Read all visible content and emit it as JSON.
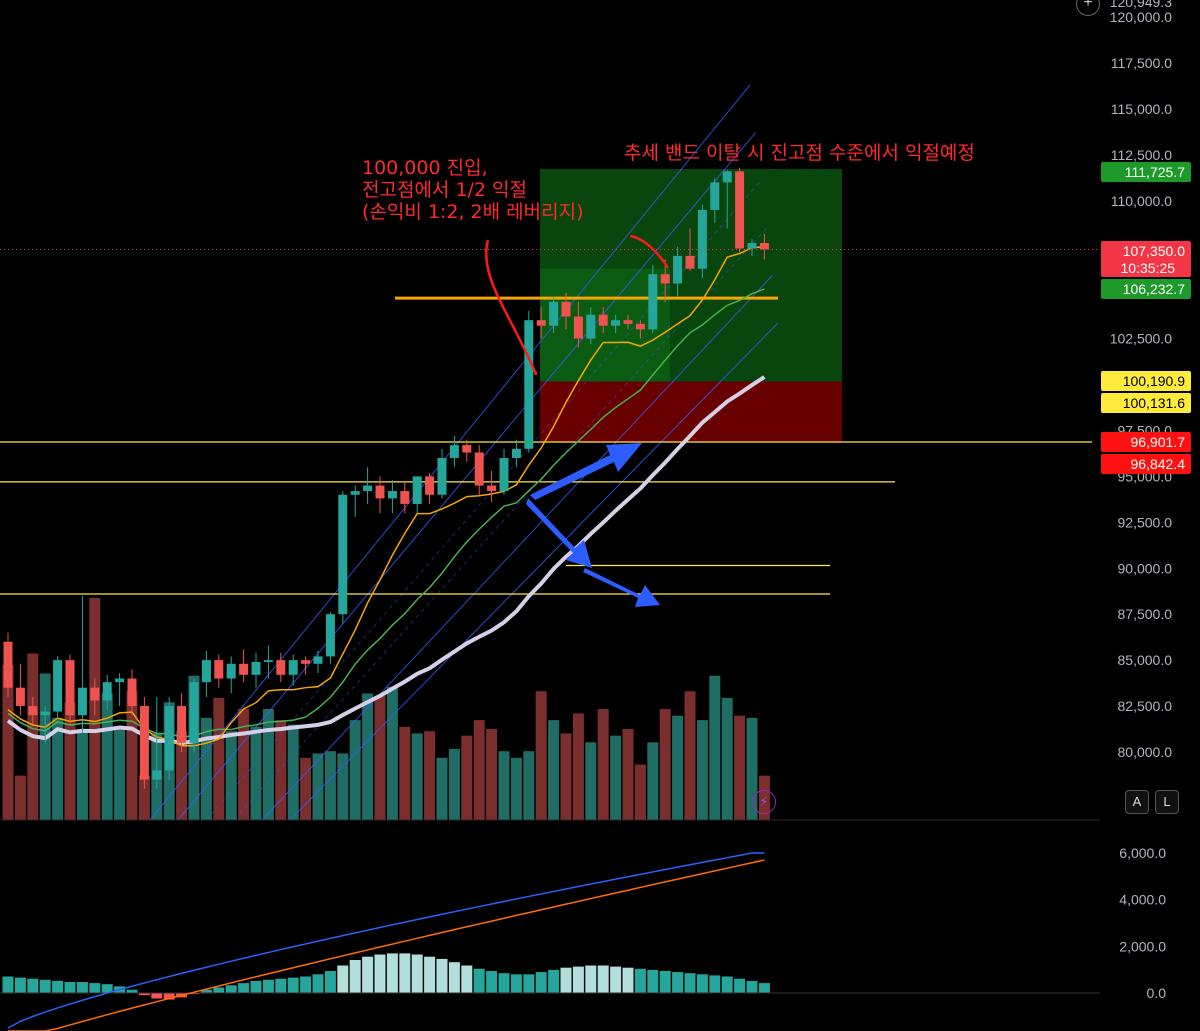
{
  "chart_data": [
    {
      "type": "candlestick",
      "symbol_note": "BTC price chart with volume",
      "y_axis": {
        "labels": [
          "120,000.0",
          "117,500.0",
          "115,000.0",
          "112,500.0",
          "110,000.0",
          "102,500.0",
          "97,500.0",
          "95,000.0",
          "92,500.0",
          "90,000.0",
          "87,500.0",
          "85,000.0",
          "82,500.0",
          "80,000.0"
        ],
        "values": [
          120000,
          117500,
          115000,
          112500,
          110000,
          102500,
          97500,
          95000,
          92500,
          90000,
          87500,
          85000,
          82500,
          80000
        ],
        "top_partial_label": "120,949.3"
      },
      "price_tags": [
        {
          "text": "111,725.7",
          "value": 111725.7,
          "bg": "#1e9a2a",
          "fg": "#ffffff"
        },
        {
          "text": "107,350.0",
          "value": 107350.0,
          "bg": "#f23645",
          "fg": "#ffffff",
          "sub": "10:35:25"
        },
        {
          "text": "106,232.7",
          "value": 106232.7,
          "bg": "#1e9a2a",
          "fg": "#ffffff"
        },
        {
          "text": "100,190.9",
          "value": 100190.9,
          "bg": "#ffeb3b",
          "fg": "#000000"
        },
        {
          "text": "100,131.6",
          "value": 100131.6,
          "bg": "#ffeb3b",
          "fg": "#000000"
        },
        {
          "text": "96,901.7",
          "value": 96901.7,
          "bg": "#ff1111",
          "fg": "#ffffff"
        },
        {
          "text": "96,842.4",
          "value": 96842.4,
          "bg": "#ff1111",
          "fg": "#ffffff"
        }
      ],
      "candles": [
        [
          86000,
          86500,
          83000,
          83500
        ],
        [
          83500,
          84800,
          82000,
          82500
        ],
        [
          82500,
          83000,
          81500,
          82000
        ],
        [
          82000,
          82500,
          80500,
          82200
        ],
        [
          82200,
          85200,
          81800,
          85000
        ],
        [
          85000,
          85300,
          81500,
          82000
        ],
        [
          82000,
          88500,
          81000,
          83500
        ],
        [
          83500,
          84000,
          82000,
          82800
        ],
        [
          82800,
          84200,
          82300,
          83800
        ],
        [
          83800,
          84300,
          82500,
          84000
        ],
        [
          84000,
          84500,
          82000,
          82500
        ],
        [
          82500,
          83000,
          78000,
          78500
        ],
        [
          78500,
          83000,
          78000,
          79000
        ],
        [
          79000,
          83000,
          78500,
          82500
        ],
        [
          82500,
          83200,
          80000,
          80500
        ],
        [
          80500,
          84000,
          80000,
          83800
        ],
        [
          83800,
          85500,
          83000,
          85000
        ],
        [
          85000,
          85300,
          83500,
          84000
        ],
        [
          84000,
          85200,
          83200,
          84800
        ],
        [
          84800,
          85600,
          83800,
          84200
        ],
        [
          84200,
          85400,
          83500,
          84900
        ],
        [
          84900,
          85800,
          84000,
          85000
        ],
        [
          85000,
          85400,
          83800,
          84200
        ],
        [
          84200,
          85300,
          83600,
          85000
        ],
        [
          85000,
          85200,
          84200,
          84800
        ],
        [
          84800,
          85500,
          84300,
          85200
        ],
        [
          85200,
          87600,
          84800,
          87500
        ],
        [
          87500,
          94200,
          87000,
          94000
        ],
        [
          94000,
          94500,
          92800,
          94200
        ],
        [
          94200,
          95500,
          93500,
          94500
        ],
        [
          94500,
          95000,
          93000,
          93800
        ],
        [
          93800,
          94800,
          93000,
          94200
        ],
        [
          94200,
          94700,
          93000,
          93500
        ],
        [
          93500,
          95000,
          93000,
          95000
        ],
        [
          95000,
          95200,
          93500,
          94000
        ],
        [
          94000,
          96500,
          93800,
          96000
        ],
        [
          96000,
          97200,
          95500,
          96700
        ],
        [
          96700,
          97000,
          95800,
          96300
        ],
        [
          96300,
          96700,
          94000,
          94500
        ],
        [
          94500,
          95300,
          93600,
          94200
        ],
        [
          94200,
          96500,
          94000,
          96000
        ],
        [
          96000,
          97000,
          95500,
          96500
        ],
        [
          96500,
          104000,
          96300,
          103500
        ],
        [
          103500,
          104200,
          102500,
          103200
        ],
        [
          103200,
          104800,
          102800,
          104500
        ],
        [
          104500,
          105000,
          103000,
          103700
        ],
        [
          103700,
          104500,
          102000,
          102500
        ],
        [
          102500,
          104200,
          102200,
          103800
        ],
        [
          103800,
          104200,
          102800,
          103200
        ],
        [
          103200,
          103800,
          102800,
          103500
        ],
        [
          103500,
          103800,
          103000,
          103300
        ],
        [
          103300,
          103500,
          102500,
          103000
        ],
        [
          103000,
          106500,
          102800,
          106000
        ],
        [
          106000,
          106800,
          104500,
          105500
        ],
        [
          105500,
          107500,
          104800,
          107000
        ],
        [
          107000,
          108500,
          106200,
          106300
        ],
        [
          106300,
          109800,
          105800,
          109500
        ],
        [
          109500,
          111200,
          108800,
          111000
        ],
        [
          111000,
          111700,
          108500,
          111600
        ],
        [
          111600,
          111800,
          107200,
          107400
        ],
        [
          107400,
          107900,
          107000,
          107700
        ],
        [
          107700,
          108200,
          106800,
          107350
        ]
      ],
      "volume": [
        70,
        20,
        75,
        66,
        46,
        53,
        40,
        100,
        57,
        42,
        58,
        20,
        39,
        53,
        40,
        65,
        46,
        55,
        40,
        50,
        42,
        50,
        45,
        43,
        28,
        30,
        31,
        30,
        45,
        57,
        56,
        60,
        42,
        39,
        40,
        28,
        32,
        38,
        45,
        41,
        31,
        28,
        31,
        58,
        45,
        39,
        48,
        35,
        50,
        38,
        41,
        25,
        35,
        50,
        47,
        58,
        45,
        65,
        55,
        47,
        46,
        20
      ],
      "volume_up_color": "#26a69a",
      "volume_down_color": "#ef5350",
      "lower_indicator": {
        "type": "macd",
        "y_labels": [
          "6,000.0",
          "4,000.0",
          "2,000.0",
          "0.0"
        ],
        "y_values": [
          6000,
          4000,
          2000,
          0
        ]
      },
      "horizontal_levels": [
        {
          "value": 104700,
          "color": "#f7a600",
          "label": ""
        },
        {
          "value": 96870,
          "color": "#ffeb3b"
        },
        {
          "value": 94700,
          "color": "#ffeb3b"
        },
        {
          "value": 90150,
          "color": "#ffeb3b"
        },
        {
          "value": 88600,
          "color": "#ffeb3b"
        }
      ],
      "position": {
        "entry": 100160,
        "take_profit_1": 104700,
        "take_profit_zone_top": 111725.7,
        "stop": 96870
      }
    }
  ],
  "annotations": {
    "entry_note": "100,000 진입,\n전고점에서 1/2 익절\n(손익비 1:2, 2배 레버리지)",
    "trend_note": "추세 밴드 이탈 시 진고점 수준에서 익절예정"
  },
  "controls": {
    "auto_label": "A",
    "log_label": "L",
    "bolt_icon": "⚡",
    "plus_icon": "+"
  },
  "colors": {
    "up": "#26a69a",
    "down": "#ef5350",
    "grid": "#1a1a1a",
    "ma_thick": "#d5cfe8",
    "ma_green": "#4caf50",
    "ma_orange": "#f7a600",
    "channel": "#3b5bff",
    "arrow": "#2d5dff"
  }
}
